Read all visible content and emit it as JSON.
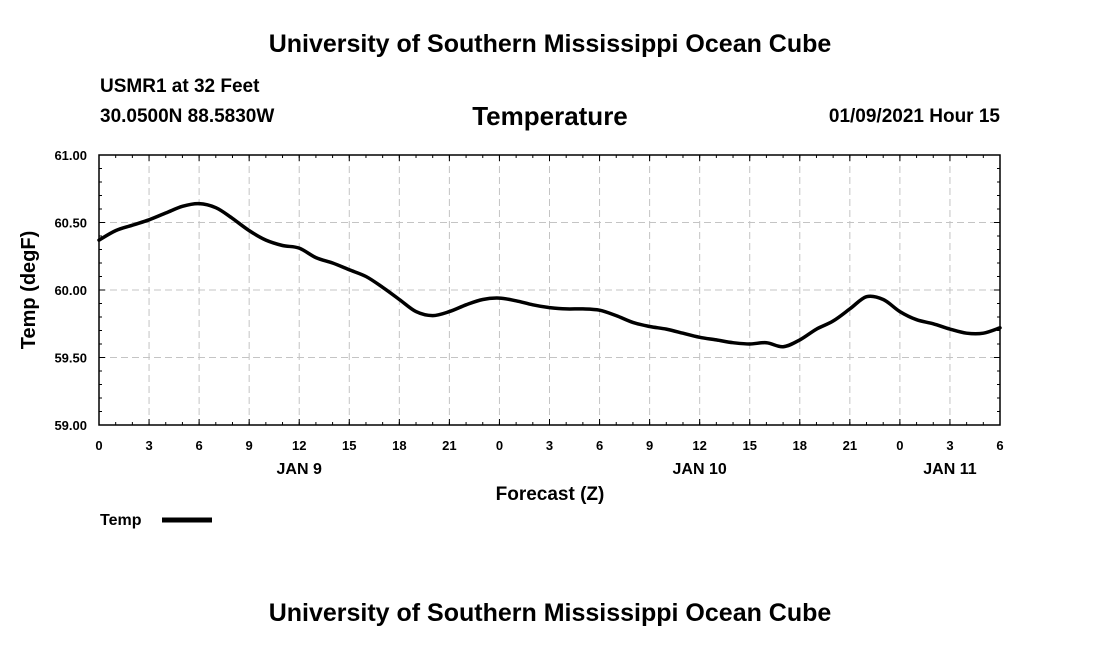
{
  "header": {
    "title": "University of Southern Mississippi Ocean Cube",
    "station": "USMR1 at 32 Feet",
    "coords": "30.0500N 88.5830W",
    "variable": "Temperature",
    "datetime": "01/09/2021 Hour 15"
  },
  "footer": {
    "title": "University of Southern Mississippi Ocean Cube"
  },
  "chart_data": {
    "type": "line",
    "title": "Temperature",
    "xlabel": "Forecast (Z)",
    "ylabel": "Temp (degF)",
    "ylim": [
      59.0,
      61.0
    ],
    "xlim": [
      0,
      54
    ],
    "grid": true,
    "y_ticks": [
      "59.00",
      "59.50",
      "60.00",
      "60.50",
      "61.00"
    ],
    "x_ticks": [
      "0",
      "3",
      "6",
      "9",
      "12",
      "15",
      "18",
      "21",
      "0",
      "3",
      "6",
      "9",
      "12",
      "15",
      "18",
      "21",
      "0",
      "3",
      "6"
    ],
    "date_labels": [
      {
        "label": "JAN 9",
        "hour": 12
      },
      {
        "label": "JAN 10",
        "hour": 36
      },
      {
        "label": "JAN 11",
        "hour": 51
      }
    ],
    "legend": {
      "label": "Temp",
      "placement": "bottom-left"
    },
    "series": [
      {
        "name": "Temp",
        "color": "#000000",
        "x": [
          0,
          1,
          2,
          3,
          4,
          5,
          6,
          7,
          8,
          9,
          10,
          11,
          12,
          13,
          14,
          15,
          16,
          17,
          18,
          19,
          20,
          21,
          22,
          23,
          24,
          25,
          26,
          27,
          28,
          29,
          30,
          31,
          32,
          33,
          34,
          35,
          36,
          37,
          38,
          39,
          40,
          41,
          42,
          43,
          44,
          45,
          46,
          47,
          48,
          49,
          50,
          51,
          52,
          53,
          54
        ],
        "values": [
          60.37,
          60.44,
          60.48,
          60.52,
          60.57,
          60.62,
          60.64,
          60.61,
          60.53,
          60.44,
          60.37,
          60.33,
          60.31,
          60.24,
          60.2,
          60.15,
          60.1,
          60.02,
          59.93,
          59.84,
          59.81,
          59.84,
          59.89,
          59.93,
          59.94,
          59.92,
          59.89,
          59.87,
          59.86,
          59.86,
          59.85,
          59.81,
          59.76,
          59.73,
          59.71,
          59.68,
          59.65,
          59.63,
          59.61,
          59.6,
          59.61,
          59.58,
          59.63,
          59.71,
          59.77,
          59.86,
          59.95,
          59.93,
          59.84,
          59.78,
          59.75,
          59.71,
          59.68,
          59.68,
          59.72
        ]
      }
    ]
  }
}
